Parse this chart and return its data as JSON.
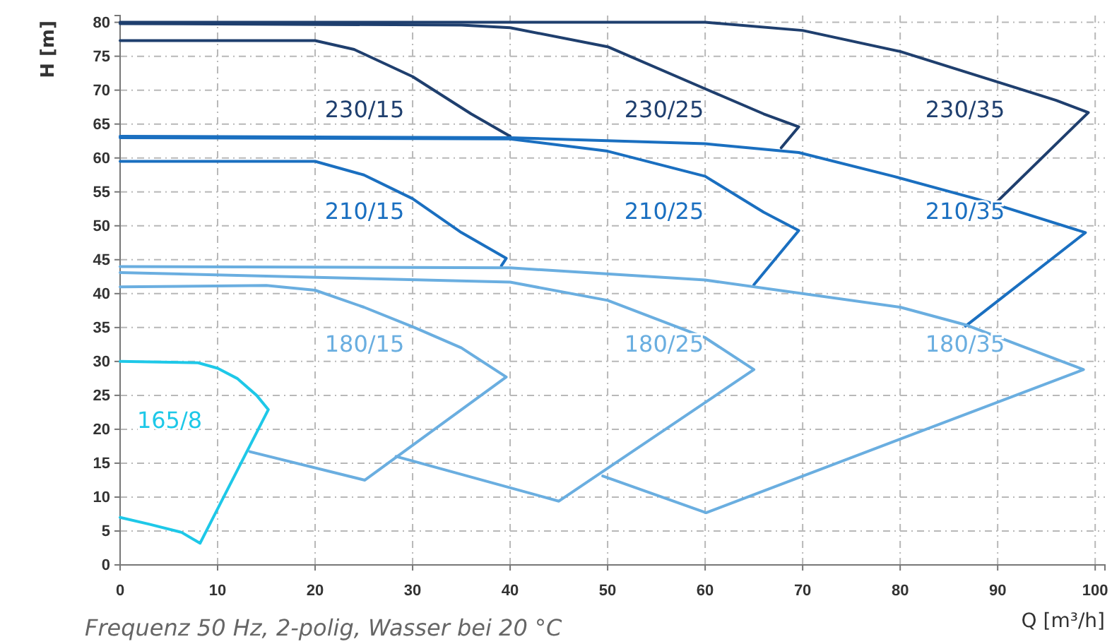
{
  "chart_data": {
    "type": "line",
    "xlabel": "Q [m³/h]",
    "ylabel": "H [m]",
    "xlim": [
      0,
      101
    ],
    "ylim": [
      0,
      81
    ],
    "xticks": [
      0,
      10,
      20,
      30,
      40,
      50,
      60,
      70,
      80,
      90,
      100
    ],
    "yticks": [
      0,
      5,
      10,
      15,
      20,
      25,
      30,
      35,
      40,
      45,
      50,
      55,
      60,
      65,
      70,
      75,
      80
    ],
    "grid": true,
    "marker": "none",
    "line_style": "solid",
    "series": [
      {
        "name": "230/15",
        "color": "#1f3f6e",
        "x": [
          0,
          20,
          24,
          30,
          36,
          40
        ],
        "values": [
          77.3,
          77.3,
          76,
          72,
          66.5,
          63.2
        ]
      },
      {
        "name": "230/25",
        "color": "#1f3f6e",
        "x": [
          0,
          35,
          40,
          50,
          60,
          66,
          69.6,
          67.8
        ],
        "values": [
          79.8,
          79.6,
          79.2,
          76.4,
          70.2,
          66.5,
          64.6,
          61.5
        ]
      },
      {
        "name": "230/35",
        "color": "#1f3f6e",
        "x": [
          0,
          50,
          60,
          70,
          80,
          90,
          96,
          99.3,
          89.9
        ],
        "values": [
          80,
          80,
          80,
          78.8,
          75.7,
          71.2,
          68.5,
          66.7,
          53.5
        ]
      },
      {
        "name": "210/15",
        "color": "#1a6fc0",
        "x": [
          0,
          20,
          25,
          30,
          35,
          39.6,
          39.1
        ],
        "values": [
          59.5,
          59.5,
          57.5,
          54,
          49,
          45.2,
          44.1
        ]
      },
      {
        "name": "210/25",
        "color": "#1a6fc0",
        "x": [
          0,
          40,
          50,
          60,
          66,
          69.6,
          65
        ],
        "values": [
          63,
          62.8,
          61,
          57.3,
          52,
          49.3,
          41.3
        ]
      },
      {
        "name": "210/35",
        "color": "#1a6fc0",
        "x": [
          0,
          40,
          60,
          69.6,
          79.3,
          89,
          99,
          86.7
        ],
        "values": [
          63.2,
          63,
          62.1,
          60.8,
          57.3,
          53.5,
          49,
          35.2
        ]
      },
      {
        "name": "180/15",
        "color": "#6aaee0",
        "x": [
          0,
          15,
          20,
          25,
          30.2,
          35,
          39.6,
          25.1,
          13.3
        ],
        "values": [
          41,
          41.2,
          40.5,
          38,
          35,
          32,
          27.7,
          12.5,
          16.7
        ]
      },
      {
        "name": "180/25",
        "color": "#6aaee0",
        "x": [
          0,
          40,
          50,
          60,
          65,
          45,
          28.3
        ],
        "values": [
          43.1,
          41.7,
          39,
          33.5,
          28.8,
          9.4,
          16
        ]
      },
      {
        "name": "180/35",
        "color": "#6aaee0",
        "x": [
          0,
          40,
          60,
          80,
          86.7,
          98.8,
          60.1,
          49.5
        ],
        "values": [
          44,
          43.8,
          42,
          38,
          35.4,
          28.8,
          7.7,
          13.1
        ]
      },
      {
        "name": "165/8",
        "color": "#1ec8e8",
        "x": [
          0,
          8,
          10,
          12,
          14,
          15.2,
          8.2,
          6.3,
          3,
          0
        ],
        "values": [
          30,
          29.8,
          29,
          27.5,
          25,
          22.9,
          3.2,
          4.8,
          6,
          7
        ]
      }
    ],
    "annotations": [
      "Frequenz 50 Hz, 2-polig, Wasser bei 20 °C"
    ]
  }
}
